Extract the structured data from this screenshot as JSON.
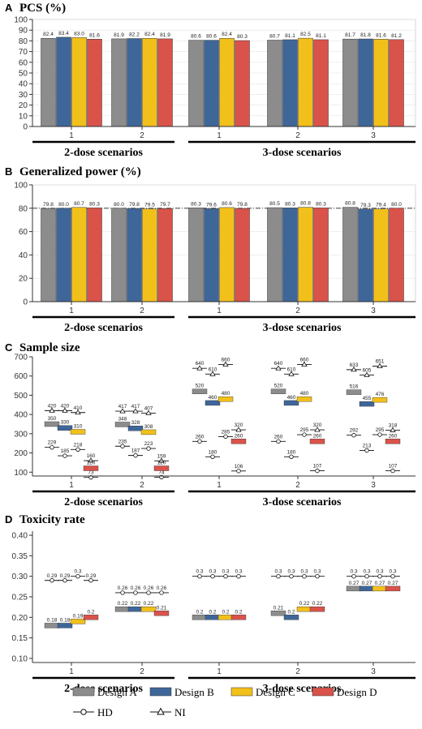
{
  "colors": {
    "Design A": "#8c8c8c",
    "Design B": "#3f6699",
    "Design C": "#f2c01a",
    "Design D": "#d9534a"
  },
  "group_labels": [
    "2-dose scenarios",
    "3-dose scenarios"
  ],
  "legend": {
    "designs": [
      "Design A",
      "Design B",
      "Design C",
      "Design D"
    ],
    "markers": [
      {
        "name": "HD",
        "shape": "circle"
      },
      {
        "name": "NI",
        "shape": "triangle"
      }
    ]
  },
  "chart_data": [
    {
      "panel": "A",
      "title": "PCS (%)",
      "type": "bar",
      "categories": [
        "1",
        "2",
        "1",
        "2",
        "3"
      ],
      "ylim": [
        0,
        100
      ],
      "yticks": [
        0,
        10,
        20,
        30,
        40,
        50,
        60,
        70,
        80,
        90,
        100
      ],
      "series": [
        {
          "name": "Design A",
          "values": [
            82.4,
            81.9,
            80.6,
            80.7,
            81.7
          ]
        },
        {
          "name": "Design B",
          "values": [
            83.4,
            82.2,
            80.6,
            81.1,
            81.8
          ]
        },
        {
          "name": "Design C",
          "values": [
            83.0,
            82.4,
            82.4,
            82.5,
            81.6
          ]
        },
        {
          "name": "Design D",
          "values": [
            81.6,
            81.9,
            80.3,
            81.1,
            81.2
          ]
        }
      ],
      "value_labels": [
        [
          "82.4",
          "83.4",
          "83.0",
          "81.6"
        ],
        [
          "81.9",
          "82.2",
          "82.4",
          "81.9"
        ],
        [
          "80.6",
          "80.6",
          "82.4",
          "80.3"
        ],
        [
          "80.7",
          "81.1",
          "82.5",
          "81.1"
        ],
        [
          "81.7",
          "81.8",
          "81.6",
          "81.2"
        ]
      ]
    },
    {
      "panel": "B",
      "title": "Generalized power (%)",
      "type": "bar",
      "categories": [
        "1",
        "2",
        "1",
        "2",
        "3"
      ],
      "ylim": [
        0,
        100
      ],
      "yticks": [
        0,
        20,
        40,
        60,
        80,
        100
      ],
      "reference_line": 80,
      "series": [
        {
          "name": "Design A",
          "values": [
            79.8,
            80.0,
            80.3,
            80.5,
            80.8
          ]
        },
        {
          "name": "Design B",
          "values": [
            80.0,
            79.8,
            79.6,
            80.3,
            79.3
          ]
        },
        {
          "name": "Design C",
          "values": [
            80.7,
            79.5,
            80.6,
            80.8,
            79.4
          ]
        },
        {
          "name": "Design D",
          "values": [
            80.3,
            79.7,
            79.8,
            80.3,
            80.0
          ]
        }
      ],
      "value_labels": [
        [
          "79.8",
          "80.0",
          "80.7",
          "80.3"
        ],
        [
          "80.0",
          "79.8",
          "79.5",
          "79.7"
        ],
        [
          "80.3",
          "79.6",
          "80.6",
          "79.8"
        ],
        [
          "80.5",
          "80.3",
          "80.8",
          "80.3"
        ],
        [
          "80.8",
          "79.3",
          "79.4",
          "80.0"
        ]
      ]
    },
    {
      "panel": "C",
      "title": "Sample size",
      "type": "scatter",
      "categories": [
        "1",
        "2",
        "1",
        "2",
        "3"
      ],
      "ylim": [
        80,
        700
      ],
      "yticks": [
        100,
        200,
        300,
        400,
        500,
        600,
        700
      ],
      "series": [
        {
          "name": "Design A",
          "values": [
            350,
            348,
            520,
            520,
            516
          ]
        },
        {
          "name": "Design B",
          "values": [
            330,
            328,
            460,
            460,
            455
          ]
        },
        {
          "name": "Design C",
          "values": [
            310,
            308,
            480,
            480,
            476
          ]
        },
        {
          "name": "Design D",
          "values": [
            120,
            120,
            260,
            260,
            260
          ]
        }
      ],
      "hd_series": [
        [
          229,
          185,
          218,
          73
        ],
        [
          235,
          187,
          223,
          74
        ],
        [
          260,
          180,
          285,
          106
        ],
        [
          260,
          180,
          295,
          107
        ],
        [
          292,
          213,
          295,
          107
        ]
      ],
      "ni_series": [
        [
          420,
          420,
          410,
          160
        ],
        [
          417,
          417,
          407,
          159
        ],
        [
          640,
          610,
          660,
          320
        ],
        [
          640,
          610,
          660,
          320
        ],
        [
          633,
          605,
          651,
          318
        ]
      ]
    },
    {
      "panel": "D",
      "title": "Toxicity rate",
      "type": "scatter",
      "categories": [
        "1",
        "2",
        "1",
        "2",
        "3"
      ],
      "ylim": [
        0.09,
        0.41
      ],
      "yticks": [
        0.1,
        0.15,
        0.2,
        0.25,
        0.3,
        0.35,
        0.4
      ],
      "ytick_labels": [
        "0.10",
        "0.15",
        "0.20",
        "0.25",
        "0.30",
        "0.35",
        "0.40"
      ],
      "series": [
        {
          "name": "Design A",
          "values": [
            0.18,
            0.22,
            0.2,
            0.21,
            0.27
          ]
        },
        {
          "name": "Design B",
          "values": [
            0.18,
            0.22,
            0.2,
            0.2,
            0.27
          ]
        },
        {
          "name": "Design C",
          "values": [
            0.19,
            0.22,
            0.2,
            0.22,
            0.27
          ]
        },
        {
          "name": "Design D",
          "values": [
            0.2,
            0.21,
            0.2,
            0.22,
            0.27
          ]
        }
      ],
      "value_labels": [
        [
          "0.18",
          "0.18",
          "0.19",
          "0.2"
        ],
        [
          "0.22",
          "0.22",
          "0.22",
          "0.21"
        ],
        [
          "0.2",
          "0.2",
          "0.2",
          "0.2"
        ],
        [
          "0.21",
          "0.2",
          "0.22",
          "0.22"
        ],
        [
          "0.27",
          "0.27",
          "0.27",
          "0.27"
        ]
      ],
      "hd_series": [
        [
          0.29,
          0.29,
          0.3,
          0.29
        ],
        [
          0.26,
          0.26,
          0.26,
          0.26
        ],
        [
          0.3,
          0.3,
          0.3,
          0.3
        ],
        [
          0.3,
          0.3,
          0.3,
          0.3
        ],
        [
          0.3,
          0.3,
          0.3,
          0.3
        ]
      ],
      "hd_labels": [
        [
          "0.29",
          "0.29",
          "0.3",
          "0.29"
        ],
        [
          "0.26",
          "0.26",
          "0.26",
          "0.26"
        ],
        [
          "0.3",
          "0.3",
          "0.3",
          "0.3"
        ],
        [
          "0.3",
          "0.3",
          "0.3",
          "0.3"
        ],
        [
          "0.3",
          "0.3",
          "0.3",
          "0.3"
        ]
      ]
    }
  ]
}
